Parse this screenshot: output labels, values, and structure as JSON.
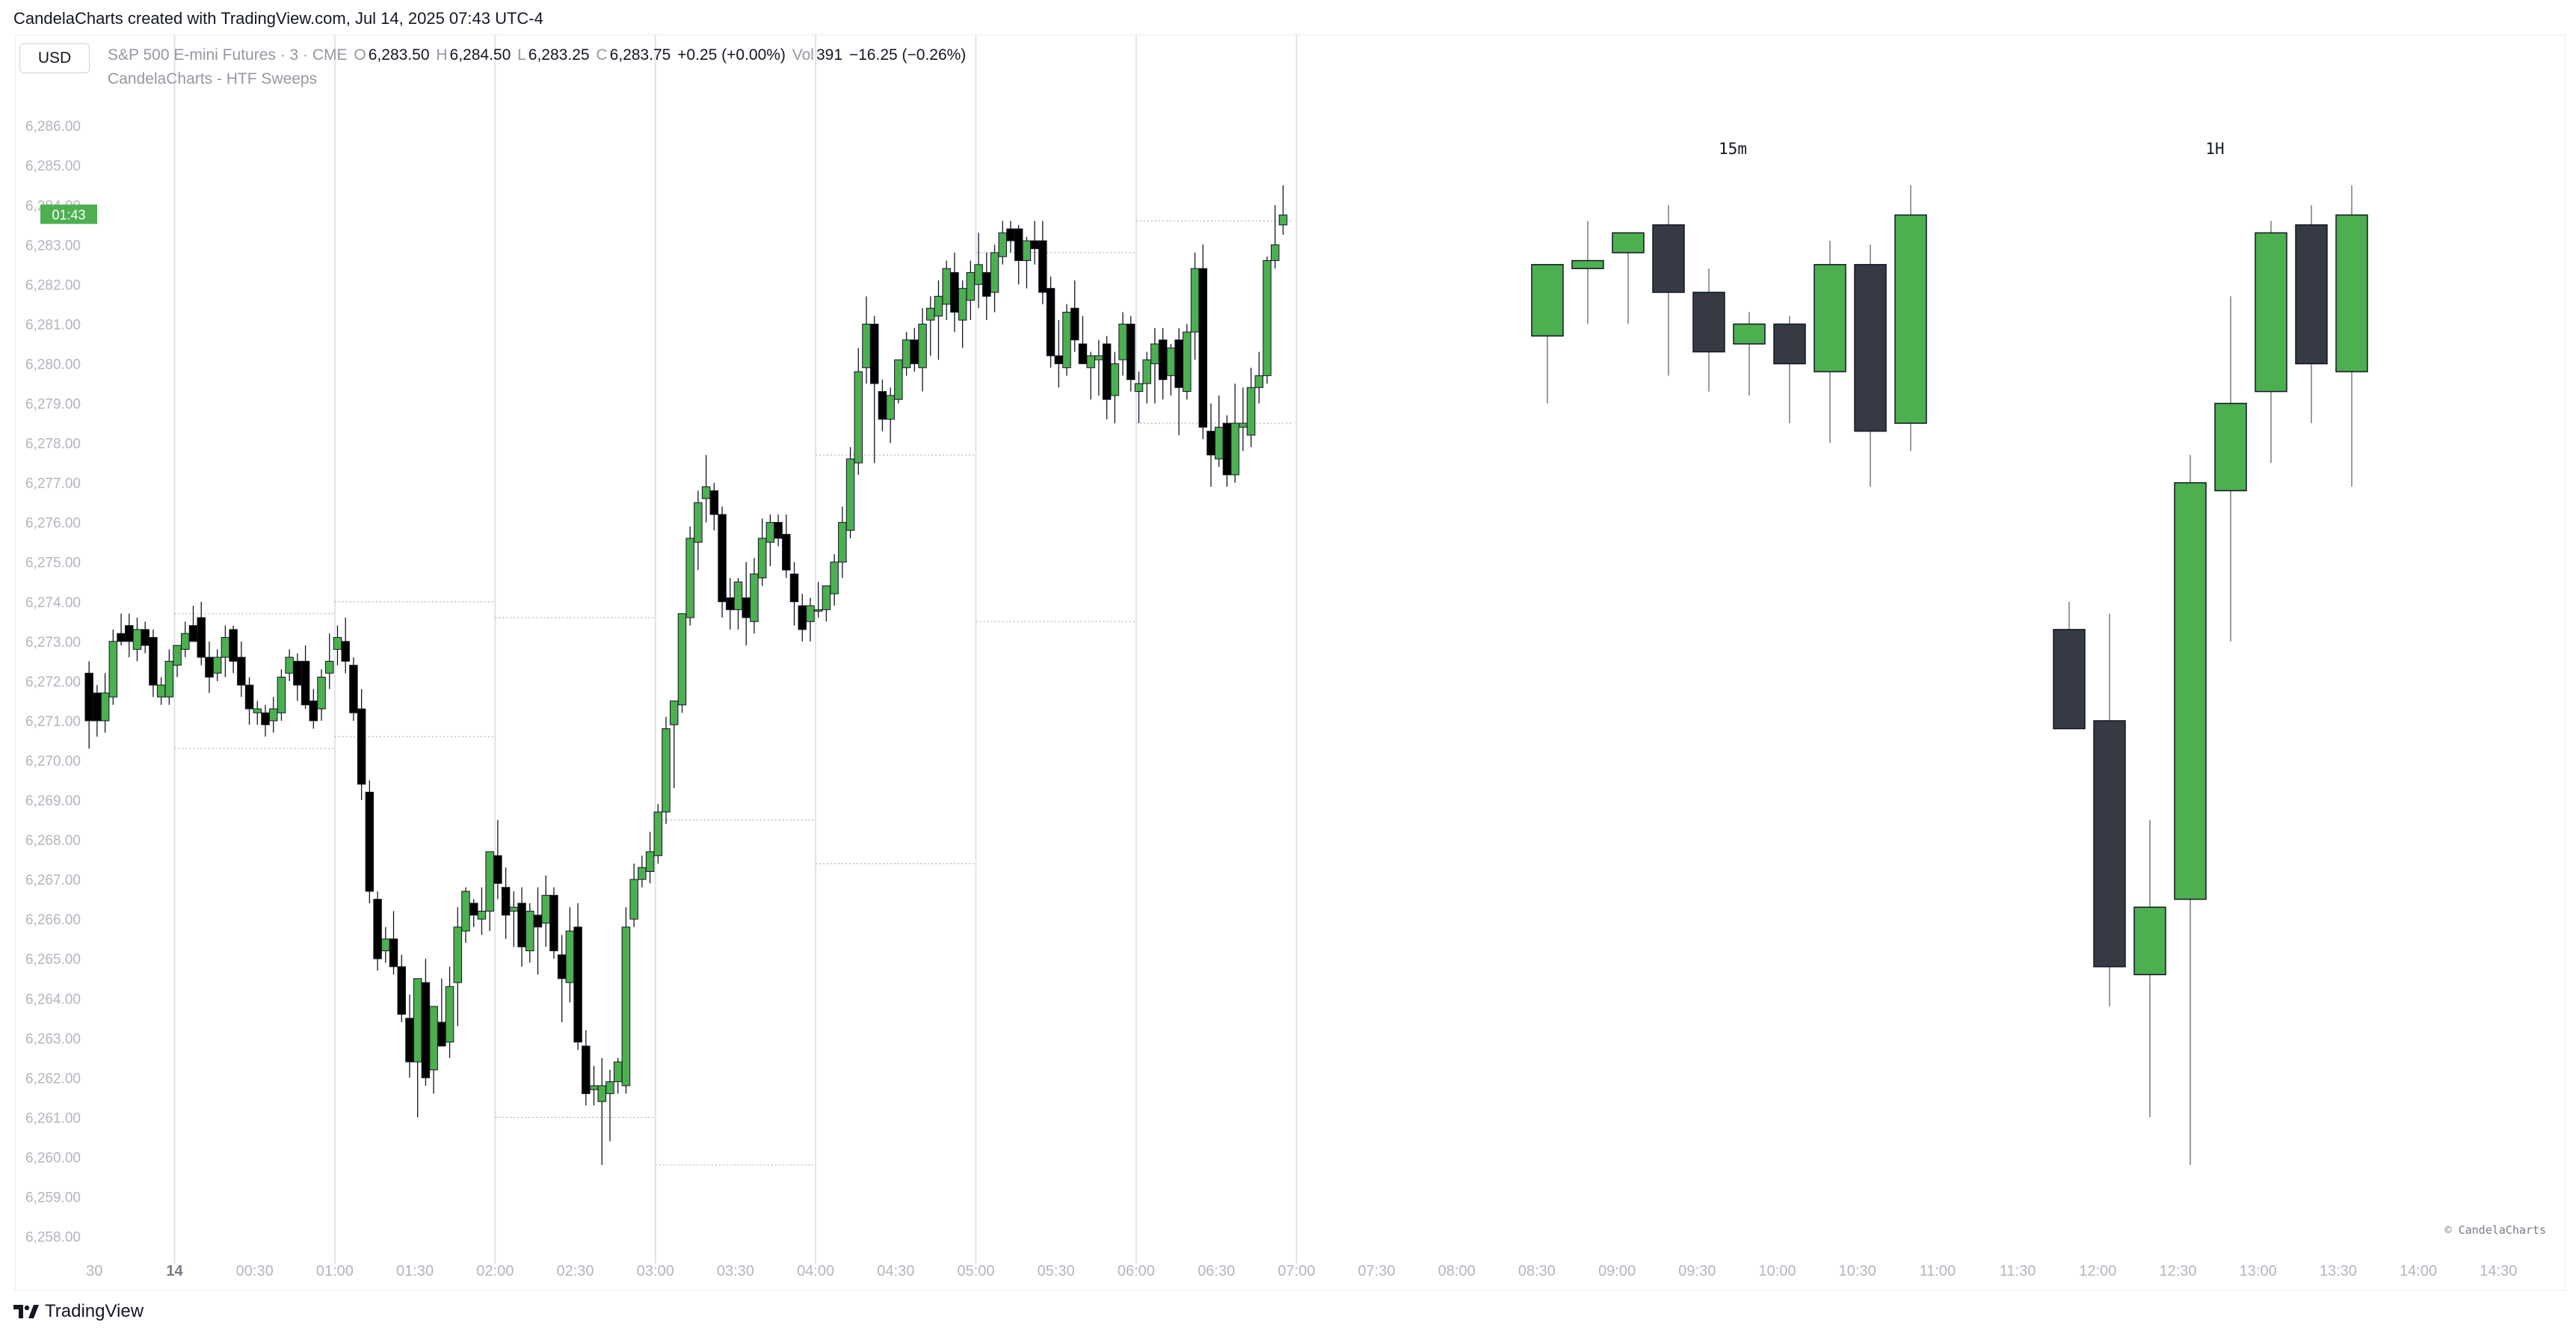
{
  "caption": "CandelaCharts created with TradingView.com, Jul 14, 2025 07:43 UTC-4",
  "currency_button": "USD",
  "legend": {
    "symbol": "S&P 500 E-mini Futures · 3 · CME",
    "o_label": "O",
    "o_value": "6,283.50",
    "h_label": "H",
    "h_value": "6,284.50",
    "l_label": "L",
    "l_value": "6,283.25",
    "c_label": "C",
    "c_value": "6,283.75",
    "change": "+0.25 (+0.00%)",
    "vol_label": "Vol",
    "vol_value": "391",
    "vol_change": "−16.25 (−0.26%)"
  },
  "indicator_name": "CandelaCharts - HTF Sweeps",
  "watermark": "© CandelaCharts",
  "footer_brand": "TradingView",
  "colors": {
    "up": "#4caf50",
    "down_main": "#000000",
    "down_htf": "#363a45",
    "grid": "#e0e3eb",
    "axis_text": "#b2b5be",
    "price_tag": "#4caf50"
  },
  "icons": {
    "tradingview_logo": "tv-logo-icon"
  },
  "chart_data": [
    {
      "type": "candlestick",
      "title": "S&P 500 E-mini Futures · 3 · CME",
      "price_tag": "6,284.00",
      "countdown": "01:43",
      "y_ticks": [
        "6,258.00",
        "6,259.00",
        "6,260.00",
        "6,261.00",
        "6,262.00",
        "6,263.00",
        "6,264.00",
        "6,265.00",
        "6,266.00",
        "6,267.00",
        "6,268.00",
        "6,269.00",
        "6,270.00",
        "6,271.00",
        "6,272.00",
        "6,273.00",
        "6,274.00",
        "6,275.00",
        "6,276.00",
        "6,277.00",
        "6,278.00",
        "6,279.00",
        "6,280.00",
        "6,281.00",
        "6,282.00",
        "6,283.00",
        "6,284.00",
        "6,285.00",
        "6,286.00"
      ],
      "ylim": [
        6257.2,
        6287.0
      ],
      "x_ticks": [
        "30",
        "14",
        "00:30",
        "01:00",
        "01:30",
        "02:00",
        "02:30",
        "03:00",
        "03:30",
        "04:00",
        "04:30",
        "05:00",
        "05:30",
        "06:00",
        "06:30",
        "07:00",
        "07:30",
        "08:00",
        "08:30",
        "09:00",
        "09:30",
        "10:00",
        "10:30",
        "11:00",
        "11:30",
        "12:00",
        "12:30",
        "13:00",
        "13:30",
        "14:00",
        "14:30"
      ],
      "x_range": [
        "23:28",
        "14:50"
      ],
      "bar_minutes": 3,
      "start": "23:28",
      "ohlc": [
        [
          6272.2,
          6272.5,
          6270.3,
          6271.0
        ],
        [
          6271.7,
          6271.9,
          6270.6,
          6271.0
        ],
        [
          6271.0,
          6272.2,
          6270.7,
          6271.7
        ],
        [
          6271.6,
          6273.3,
          6271.4,
          6273.0
        ],
        [
          6273.2,
          6273.7,
          6272.9,
          6273.0
        ],
        [
          6273.4,
          6273.7,
          6272.6,
          6273.0
        ],
        [
          6272.8,
          6273.6,
          6272.5,
          6273.3
        ],
        [
          6273.3,
          6273.5,
          6272.7,
          6272.9
        ],
        [
          6273.1,
          6273.3,
          6271.6,
          6271.9
        ],
        [
          6271.6,
          6272.1,
          6271.4,
          6271.9
        ],
        [
          6271.6,
          6272.8,
          6271.4,
          6272.5
        ],
        [
          6272.4,
          6272.9,
          6272.1,
          6272.9
        ],
        [
          6272.8,
          6273.5,
          6272.6,
          6273.2
        ],
        [
          6273.4,
          6273.9,
          6273.0,
          6273.0
        ],
        [
          6273.6,
          6274.0,
          6272.4,
          6272.6
        ],
        [
          6272.6,
          6273.0,
          6271.7,
          6272.1
        ],
        [
          6272.2,
          6272.8,
          6272.0,
          6272.6
        ],
        [
          6272.6,
          6273.4,
          6272.1,
          6273.1
        ],
        [
          6273.3,
          6273.4,
          6272.2,
          6272.5
        ],
        [
          6272.6,
          6273.0,
          6271.6,
          6271.9
        ],
        [
          6271.9,
          6272.1,
          6270.9,
          6271.3
        ],
        [
          6271.2,
          6271.5,
          6270.9,
          6271.3
        ],
        [
          6271.2,
          6271.4,
          6270.6,
          6270.9
        ],
        [
          6271.0,
          6271.6,
          6270.7,
          6271.3
        ],
        [
          6271.2,
          6272.3,
          6271.0,
          6272.1
        ],
        [
          6272.2,
          6272.8,
          6272.0,
          6272.6
        ],
        [
          6272.5,
          6272.7,
          6271.5,
          6271.9
        ],
        [
          6272.5,
          6272.9,
          6271.3,
          6271.4
        ],
        [
          6271.5,
          6271.8,
          6270.8,
          6271.0
        ],
        [
          6271.3,
          6272.3,
          6271.0,
          6272.1
        ],
        [
          6272.2,
          6273.2,
          6271.8,
          6272.5
        ],
        [
          6272.8,
          6273.4,
          6272.4,
          6273.1
        ],
        [
          6273.0,
          6273.6,
          6272.2,
          6272.5
        ],
        [
          6272.4,
          6272.6,
          6271.0,
          6271.2
        ],
        [
          6271.3,
          6271.8,
          6269.0,
          6269.4
        ],
        [
          6269.2,
          6269.5,
          6266.4,
          6266.7
        ],
        [
          6266.5,
          6266.7,
          6264.7,
          6265.0
        ],
        [
          6265.2,
          6265.8,
          6264.9,
          6265.5
        ],
        [
          6265.5,
          6266.2,
          6264.6,
          6264.8
        ],
        [
          6264.8,
          6265.1,
          6263.4,
          6263.6
        ],
        [
          6263.5,
          6264.1,
          6262.0,
          6262.4
        ],
        [
          6262.4,
          6264.5,
          6261.0,
          6264.5
        ],
        [
          6264.4,
          6265.0,
          6261.8,
          6262.0
        ],
        [
          6262.2,
          6263.8,
          6261.6,
          6263.8
        ],
        [
          6263.4,
          6264.5,
          6262.8,
          6262.8
        ],
        [
          6262.9,
          6264.8,
          6262.5,
          6264.3
        ],
        [
          6264.4,
          6266.3,
          6263.3,
          6265.8
        ],
        [
          6265.7,
          6266.8,
          6265.4,
          6266.7
        ],
        [
          6266.4,
          6266.5,
          6265.8,
          6266.1
        ],
        [
          6266.0,
          6266.8,
          6265.6,
          6266.2
        ],
        [
          6266.2,
          6267.6,
          6265.7,
          6267.7
        ],
        [
          6267.6,
          6268.5,
          6266.5,
          6266.9
        ],
        [
          6266.8,
          6267.3,
          6265.5,
          6266.1
        ],
        [
          6266.2,
          6266.7,
          6265.3,
          6266.3
        ],
        [
          6266.4,
          6266.8,
          6264.8,
          6265.3
        ],
        [
          6265.2,
          6266.4,
          6264.9,
          6266.2
        ],
        [
          6266.1,
          6266.8,
          6264.6,
          6265.8
        ],
        [
          6265.9,
          6267.1,
          6265.3,
          6266.6
        ],
        [
          6266.6,
          6266.8,
          6265.0,
          6265.2
        ],
        [
          6265.1,
          6265.6,
          6263.4,
          6264.5
        ],
        [
          6264.4,
          6266.3,
          6263.9,
          6265.7
        ],
        [
          6265.8,
          6266.4,
          6262.7,
          6262.9
        ],
        [
          6262.8,
          6263.2,
          6261.3,
          6261.6
        ],
        [
          6261.7,
          6262.3,
          6261.3,
          6261.8
        ],
        [
          6261.4,
          6262.5,
          6259.8,
          6261.8
        ],
        [
          6261.6,
          6262.2,
          6260.4,
          6261.9
        ],
        [
          6261.9,
          6262.5,
          6261.6,
          6262.4
        ],
        [
          6261.8,
          6266.3,
          6261.6,
          6265.8
        ],
        [
          6266.0,
          6267.4,
          6265.8,
          6267.0
        ],
        [
          6267.0,
          6267.6,
          6266.8,
          6267.3
        ],
        [
          6267.2,
          6268.2,
          6266.9,
          6267.7
        ],
        [
          6267.6,
          6268.9,
          6267.4,
          6268.7
        ],
        [
          6268.7,
          6271.1,
          6268.4,
          6270.8
        ],
        [
          6270.9,
          6271.5,
          6269.3,
          6271.5
        ],
        [
          6271.4,
          6273.7,
          6271.2,
          6273.7
        ],
        [
          6273.6,
          6275.9,
          6273.4,
          6275.6
        ],
        [
          6275.5,
          6276.8,
          6274.8,
          6276.5
        ],
        [
          6276.6,
          6277.7,
          6276.0,
          6276.9
        ],
        [
          6276.8,
          6277.0,
          6275.8,
          6276.2
        ],
        [
          6276.2,
          6276.4,
          6273.6,
          6274.0
        ],
        [
          6274.1,
          6274.6,
          6273.3,
          6273.8
        ],
        [
          6273.8,
          6274.6,
          6273.3,
          6274.5
        ],
        [
          6274.1,
          6275.0,
          6272.9,
          6273.6
        ],
        [
          6273.5,
          6275.1,
          6273.2,
          6274.7
        ],
        [
          6274.6,
          6276.1,
          6274.4,
          6275.6
        ],
        [
          6275.5,
          6276.2,
          6274.9,
          6276.0
        ],
        [
          6276.0,
          6276.2,
          6275.4,
          6275.6
        ],
        [
          6275.7,
          6276.2,
          6274.6,
          6274.8
        ],
        [
          6274.7,
          6275.0,
          6273.4,
          6274.0
        ],
        [
          6273.9,
          6274.2,
          6273.0,
          6273.3
        ],
        [
          6273.5,
          6274.1,
          6273.0,
          6273.9
        ],
        [
          6273.8,
          6274.5,
          6273.6,
          6273.8
        ],
        [
          6273.8,
          6274.3,
          6273.5,
          6274.4
        ],
        [
          6274.2,
          6275.2,
          6273.9,
          6275.0
        ],
        [
          6275.0,
          6276.4,
          6274.6,
          6276.0
        ],
        [
          6275.8,
          6277.9,
          6275.6,
          6277.6
        ],
        [
          6277.5,
          6280.4,
          6277.2,
          6279.8
        ],
        [
          6279.9,
          6281.7,
          6279.5,
          6281.0
        ],
        [
          6281.0,
          6281.2,
          6277.5,
          6279.5
        ],
        [
          6279.3,
          6279.6,
          6278.3,
          6278.6
        ],
        [
          6278.6,
          6279.4,
          6278.0,
          6279.2
        ],
        [
          6279.1,
          6280.1,
          6279.0,
          6280.1
        ],
        [
          6279.9,
          6280.8,
          6279.7,
          6280.6
        ],
        [
          6280.6,
          6280.9,
          6279.8,
          6280.0
        ],
        [
          6279.9,
          6281.4,
          6279.3,
          6281.0
        ],
        [
          6281.1,
          6281.7,
          6280.2,
          6281.4
        ],
        [
          6281.2,
          6282.1,
          6280.1,
          6281.7
        ],
        [
          6281.5,
          6282.6,
          6281.1,
          6282.4
        ],
        [
          6282.3,
          6282.8,
          6280.8,
          6281.3
        ],
        [
          6281.1,
          6282.1,
          6280.4,
          6281.9
        ],
        [
          6281.6,
          6282.6,
          6281.1,
          6282.3
        ],
        [
          6282.0,
          6283.3,
          6281.4,
          6282.5
        ],
        [
          6282.3,
          6282.8,
          6281.1,
          6281.7
        ],
        [
          6281.8,
          6283.0,
          6281.3,
          6282.8
        ],
        [
          6282.7,
          6283.6,
          6282.5,
          6283.3
        ],
        [
          6283.4,
          6283.6,
          6282.8,
          6283.1
        ],
        [
          6283.4,
          6283.5,
          6282.0,
          6282.6
        ],
        [
          6282.6,
          6283.2,
          6281.9,
          6283.1
        ],
        [
          6283.1,
          6283.6,
          6282.5,
          6282.9
        ],
        [
          6283.1,
          6283.6,
          6281.5,
          6281.8
        ],
        [
          6281.9,
          6282.2,
          6279.9,
          6280.2
        ],
        [
          6280.2,
          6281.1,
          6279.4,
          6280.0
        ],
        [
          6279.9,
          6281.5,
          6279.7,
          6281.3
        ],
        [
          6281.4,
          6282.1,
          6280.3,
          6280.6
        ],
        [
          6280.5,
          6281.2,
          6280.0,
          6280.0
        ],
        [
          6279.9,
          6280.3,
          6279.1,
          6280.2
        ],
        [
          6280.1,
          6280.6,
          6279.2,
          6280.2
        ],
        [
          6280.5,
          6280.7,
          6278.6,
          6279.1
        ],
        [
          6279.2,
          6280.3,
          6278.5,
          6280.0
        ],
        [
          6280.1,
          6281.3,
          6279.7,
          6281.0
        ],
        [
          6281.0,
          6281.2,
          6279.3,
          6279.6
        ],
        [
          6279.3,
          6279.8,
          6278.5,
          6279.5
        ],
        [
          6279.5,
          6280.3,
          6279.0,
          6280.1
        ],
        [
          6280.0,
          6280.9,
          6279.0,
          6280.5
        ],
        [
          6280.6,
          6280.9,
          6279.1,
          6279.6
        ],
        [
          6279.7,
          6280.5,
          6279.2,
          6280.4
        ],
        [
          6280.6,
          6280.9,
          6278.2,
          6279.4
        ],
        [
          6279.3,
          6281.0,
          6279.1,
          6280.8
        ],
        [
          6280.8,
          6282.8,
          6280.1,
          6282.4
        ],
        [
          6282.4,
          6283.0,
          6278.1,
          6278.4
        ],
        [
          6278.3,
          6279.0,
          6276.9,
          6277.7
        ],
        [
          6277.6,
          6279.2,
          6277.4,
          6278.4
        ],
        [
          6278.5,
          6278.7,
          6276.9,
          6277.2
        ],
        [
          6277.2,
          6279.5,
          6277.0,
          6278.5
        ],
        [
          6278.4,
          6279.4,
          6277.8,
          6278.5
        ],
        [
          6278.2,
          6279.9,
          6277.9,
          6279.4
        ],
        [
          6279.4,
          6280.3,
          6279.0,
          6279.7
        ],
        [
          6279.7,
          6282.7,
          6279.5,
          6282.6
        ],
        [
          6282.6,
          6284.0,
          6282.4,
          6283.0
        ],
        [
          6283.5,
          6284.5,
          6283.25,
          6283.75
        ]
      ]
    },
    {
      "type": "candlestick",
      "title": "15m",
      "ohlc": [
        [
          6280.7,
          6282.5,
          6279.0,
          6282.5
        ],
        [
          6282.4,
          6283.6,
          6281.0,
          6282.6
        ],
        [
          6282.8,
          6283.3,
          6281.0,
          6283.3
        ],
        [
          6283.5,
          6284.0,
          6279.7,
          6281.8
        ],
        [
          6281.8,
          6282.4,
          6279.3,
          6280.3
        ],
        [
          6280.5,
          6281.3,
          6279.2,
          6281.0
        ],
        [
          6281.0,
          6281.2,
          6278.5,
          6280.0
        ],
        [
          6279.8,
          6283.1,
          6278.0,
          6282.5
        ],
        [
          6282.5,
          6283.0,
          6276.9,
          6278.3
        ],
        [
          6278.5,
          6284.5,
          6277.8,
          6283.75
        ]
      ]
    },
    {
      "type": "candlestick",
      "title": "1H",
      "ohlc": [
        [
          6273.3,
          6274.0,
          6270.8,
          6270.8
        ],
        [
          6271.0,
          6273.7,
          6263.8,
          6264.8
        ],
        [
          6264.6,
          6268.5,
          6261.0,
          6266.3
        ],
        [
          6266.5,
          6277.7,
          6259.8,
          6277.0
        ],
        [
          6276.8,
          6281.7,
          6273.0,
          6279.0
        ],
        [
          6279.3,
          6283.6,
          6277.5,
          6283.3
        ],
        [
          6283.5,
          6284.0,
          6278.5,
          6280.0
        ],
        [
          6279.8,
          6284.5,
          6276.9,
          6283.75
        ]
      ]
    }
  ]
}
